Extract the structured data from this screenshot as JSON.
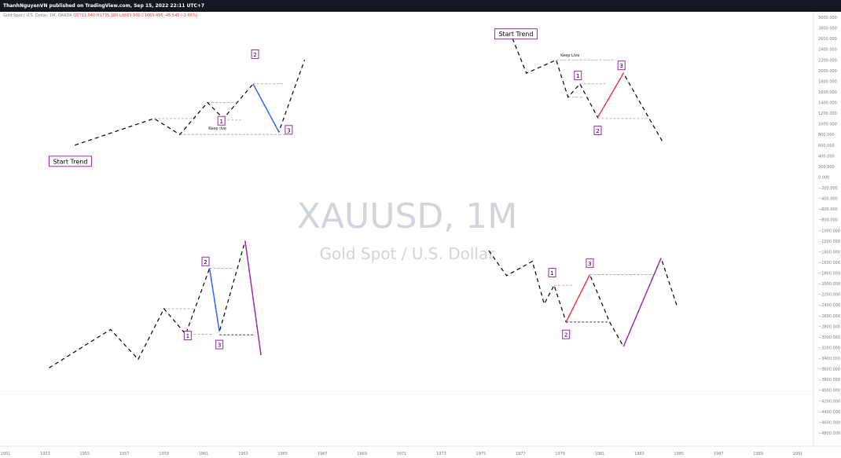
{
  "header": {
    "published_line": "ThanhNguyenVN published on TradingView.com, Sep 15, 2022 22:11 UTC+7"
  },
  "legend": {
    "symbol_line": "Gold Spot / U.S. Dollar, 1M, OANDA",
    "ohlc": "O1711.040  H1735.180  L1663.600  C1665.495  -45.545 (-2.66%)"
  },
  "watermark": {
    "symbol": "XAUUSD, 1M",
    "description": "Gold Spot / U.S. Dollar"
  },
  "chart_data": {
    "type": "line",
    "x_ticks": [
      "1951",
      "1953",
      "1955",
      "1957",
      "1959",
      "1961",
      "1963",
      "1965",
      "1967",
      "1969",
      "1971",
      "1973",
      "1975",
      "1977",
      "1979",
      "1981",
      "1983",
      "1985",
      "1987",
      "1989",
      "1991"
    ],
    "y_ticks": [
      "3000.000",
      "2800.000",
      "2600.000",
      "2400.000",
      "2200.000",
      "2000.000",
      "1800.000",
      "1600.000",
      "1400.000",
      "1200.000",
      "1000.000",
      "800.000",
      "600.000",
      "400.000",
      "200.000",
      "0.000",
      "−200.000",
      "−400.000",
      "−600.000",
      "−800.000",
      "−1000.000",
      "−1200.000",
      "−1400.000",
      "−1600.000",
      "−1800.000",
      "−2000.000",
      "−2200.000",
      "−2400.000",
      "−2600.000",
      "−2800.000",
      "−3000.000",
      "−3200.000",
      "−3400.000",
      "−3600.000",
      "−3800.000",
      "−4000.000",
      "−4200.000",
      "−4400.000",
      "−4600.000",
      "−4800.000"
    ],
    "y_range": [
      -4900,
      3100
    ],
    "annotation_text": {
      "start_trend": "Start Trend",
      "keep_live": "Keep live",
      "keep_live_tr": "Keep Live"
    },
    "panels": [
      {
        "name": "uptrend-top-left",
        "path": [
          [
            1954.5,
            600
          ],
          [
            1958.5,
            1100
          ],
          [
            1959.8,
            800
          ],
          [
            1961.2,
            1400
          ],
          [
            1962,
            1100
          ],
          [
            1963.5,
            1750
          ],
          [
            1964.8,
            850
          ],
          [
            1966.1,
            2200
          ]
        ],
        "highlight": {
          "from": [
            1963.5,
            1750
          ],
          "to": [
            1964.8,
            850
          ],
          "color": "#2962ff"
        },
        "levels": [
          {
            "y": 1100,
            "x1": 1958.5,
            "x2": 1960.7,
            "dash": "3,2",
            "color": "#9e9e9e"
          },
          {
            "y": 800,
            "x1": 1959.8,
            "x2": 1964.8,
            "dash": "3,2",
            "color": "#9e9e9e"
          },
          {
            "y": 1400,
            "x1": 1961.2,
            "x2": 1962.5,
            "dash": "3,2",
            "color": "#9e9e9e"
          },
          {
            "y": 1070,
            "x1": 1962,
            "x2": 1963,
            "dash": "3,2",
            "color": "#9e9e9e"
          },
          {
            "y": 1750,
            "x1": 1963.5,
            "x2": 1965,
            "dash": "3,2",
            "color": "#9e9e9e"
          },
          {
            "y": 800,
            "x1": 1964.8,
            "x2": 1965.1,
            "dash": "3,2",
            "color": "#9e9e9e"
          }
        ],
        "labels": [
          {
            "text": "Start Trend",
            "x": 1953.2,
            "y": 290,
            "kind": "start"
          },
          {
            "text": "Keep live",
            "x": 1961.7,
            "y": 890,
            "kind": "note"
          },
          {
            "text": "1",
            "x": 1961.9,
            "y": 1050,
            "kind": "box"
          },
          {
            "text": "2",
            "x": 1963.6,
            "y": 2300,
            "kind": "box"
          },
          {
            "text": "3",
            "x": 1965.3,
            "y": 880,
            "kind": "box"
          }
        ]
      },
      {
        "name": "downtrend-top-right",
        "path": [
          [
            1976.6,
            2600
          ],
          [
            1977.3,
            1950
          ],
          [
            1978.8,
            2200
          ],
          [
            1979.4,
            1500
          ],
          [
            1980,
            1750
          ],
          [
            1980.9,
            1120
          ],
          [
            1982.2,
            1950
          ],
          [
            1983.5,
            1100
          ],
          [
            1984.2,
            650
          ]
        ],
        "highlight": {
          "from": [
            1980.9,
            1120
          ],
          "to": [
            1982.2,
            1950
          ],
          "color": "#f23645"
        },
        "levels": [
          {
            "y": 2200,
            "x1": 1978.8,
            "x2": 1981.8,
            "dash": "3,2",
            "color": "#9e9e9e"
          },
          {
            "y": 1500,
            "x1": 1979.4,
            "x2": 1980.2,
            "dash": "3,2",
            "color": "#9e9e9e"
          },
          {
            "y": 1750,
            "x1": 1980,
            "x2": 1981.3,
            "dash": "3,2",
            "color": "#9e9e9e"
          },
          {
            "y": 1100,
            "x1": 1980.9,
            "x2": 1983.5,
            "dash": "3,2",
            "color": "#9e9e9e"
          }
        ],
        "labels": [
          {
            "text": "Start Trend",
            "x": 1975.7,
            "y": 2680,
            "kind": "start"
          },
          {
            "text": "Keep Live",
            "x": 1979.5,
            "y": 2260,
            "kind": "note"
          },
          {
            "text": "1",
            "x": 1979.9,
            "y": 1900,
            "kind": "box"
          },
          {
            "text": "2",
            "x": 1980.9,
            "y": 870,
            "kind": "box"
          },
          {
            "text": "3",
            "x": 1982.1,
            "y": 2090,
            "kind": "box"
          }
        ]
      },
      {
        "name": "uptrend-bottom-left",
        "path": [
          [
            1953.2,
            -3580
          ],
          [
            1956.3,
            -2860
          ],
          [
            1957.7,
            -3420
          ],
          [
            1959,
            -2470
          ],
          [
            1960.1,
            -2950
          ],
          [
            1961.3,
            -1710
          ],
          [
            1961.8,
            -2900
          ],
          [
            1963.1,
            -1200
          ],
          [
            1963.9,
            -3340
          ]
        ],
        "highlight": {
          "from": [
            1961.3,
            -1710
          ],
          "to": [
            1961.8,
            -2900
          ],
          "color": "#2962ff"
        },
        "highlight2": {
          "from": [
            1963.1,
            -1200
          ],
          "to": [
            1963.9,
            -3340
          ],
          "color": "#9c27b0"
        },
        "levels": [
          {
            "y": -2470,
            "x1": 1959,
            "x2": 1960.6,
            "dash": "3,2",
            "color": "#9e9e9e"
          },
          {
            "y": -2950,
            "x1": 1960.1,
            "x2": 1961.4,
            "dash": "3,2",
            "color": "#9e9e9e"
          },
          {
            "y": -1710,
            "x1": 1961.3,
            "x2": 1962.5,
            "dash": "3,2",
            "color": "#9e9e9e"
          },
          {
            "y": -2960,
            "x1": 1961.8,
            "x2": 1963.6,
            "dash": "3,2",
            "color": "#212121"
          }
        ],
        "labels": [
          {
            "text": "1",
            "x": 1960.2,
            "y": -2980,
            "kind": "box"
          },
          {
            "text": "2",
            "x": 1961.1,
            "y": -1590,
            "kind": "box"
          },
          {
            "text": "3",
            "x": 1961.8,
            "y": -3150,
            "kind": "box"
          }
        ]
      },
      {
        "name": "downtrend-bottom-right",
        "path": [
          [
            1975.4,
            -1380
          ],
          [
            1976.3,
            -1850
          ],
          [
            1977.6,
            -1580
          ],
          [
            1978.2,
            -2380
          ],
          [
            1978.7,
            -2030
          ],
          [
            1979.3,
            -2720
          ],
          [
            1980.5,
            -1830
          ],
          [
            1981.5,
            -2720
          ],
          [
            1982.2,
            -3180
          ],
          [
            1984.1,
            -1520
          ],
          [
            1984.9,
            -2420
          ]
        ],
        "highlight": {
          "from": [
            1979.3,
            -2720
          ],
          "to": [
            1980.5,
            -1830
          ],
          "color": "#f23645"
        },
        "highlight2": {
          "from": [
            1982.2,
            -3180
          ],
          "to": [
            1984.1,
            -1520
          ],
          "color": "#9c27b0"
        },
        "levels": [
          {
            "y": -2030,
            "x1": 1978.7,
            "x2": 1979.7,
            "dash": "3,2",
            "color": "#9e9e9e"
          },
          {
            "y": -1830,
            "x1": 1980.5,
            "x2": 1983.9,
            "dash": "3,2",
            "color": "#9e9e9e"
          },
          {
            "y": -2720,
            "x1": 1979.3,
            "x2": 1981.5,
            "dash": "3,2",
            "color": "#212121"
          }
        ],
        "labels": [
          {
            "text": "1",
            "x": 1978.6,
            "y": -1800,
            "kind": "box"
          },
          {
            "text": "2",
            "x": 1979.3,
            "y": -2960,
            "kind": "box"
          },
          {
            "text": "3",
            "x": 1980.5,
            "y": -1620,
            "kind": "box"
          }
        ]
      }
    ]
  }
}
